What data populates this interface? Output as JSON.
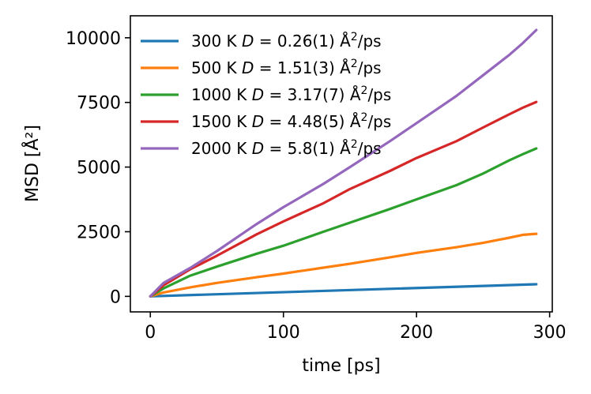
{
  "chart_data": {
    "type": "line",
    "xlabel": "time [ps]",
    "ylabel": "MSD [Å²]",
    "xlim": [
      -15,
      302
    ],
    "ylim": [
      -600,
      10850
    ],
    "xticks": [
      0,
      100,
      200,
      300
    ],
    "yticks": [
      0,
      2500,
      5000,
      7500,
      10000
    ],
    "xtick_labels": [
      "0",
      "100",
      "200",
      "300"
    ],
    "ytick_labels": [
      "0",
      "2500",
      "5000",
      "7500",
      "10000"
    ],
    "legend_position": "upper-left",
    "series": [
      {
        "name": "300 K",
        "legend": {
          "temp": "300 K",
          "sym": "D",
          "eq": "=",
          "value": "0.26(1)",
          "unit": "Å",
          "sup": "2",
          "per": "/ps"
        },
        "color": "#1f77b4",
        "x": [
          0,
          290
        ],
        "values": [
          0,
          470
        ]
      },
      {
        "name": "500 K",
        "legend": {
          "temp": "500 K",
          "sym": "D",
          "eq": "=",
          "value": "1.51(3)",
          "unit": "Å",
          "sup": "2",
          "per": "/ps"
        },
        "color": "#ff7f0e",
        "x": [
          0,
          10,
          30,
          50,
          80,
          100,
          130,
          150,
          180,
          200,
          230,
          250,
          270,
          280,
          290
        ],
        "values": [
          0,
          150,
          350,
          520,
          740,
          880,
          1110,
          1260,
          1510,
          1680,
          1900,
          2070,
          2270,
          2380,
          2420
        ]
      },
      {
        "name": "1000 K",
        "legend": {
          "temp": "1000 K",
          "sym": "D",
          "eq": "=",
          "value": "3.17(7)",
          "unit": "Å",
          "sup": "2",
          "per": "/ps"
        },
        "color": "#2ca02c",
        "x": [
          0,
          10,
          30,
          50,
          80,
          100,
          130,
          150,
          180,
          200,
          230,
          250,
          270,
          280,
          290
        ],
        "values": [
          0,
          310,
          800,
          1150,
          1650,
          1960,
          2500,
          2850,
          3380,
          3750,
          4300,
          4750,
          5270,
          5500,
          5720
        ]
      },
      {
        "name": "1500 K",
        "legend": {
          "temp": "1500 K",
          "sym": "D",
          "eq": "=",
          "value": "4.48(5)",
          "unit": "Å",
          "sup": "2",
          "per": "/ps"
        },
        "color": "#d62728",
        "x": [
          0,
          10,
          30,
          50,
          80,
          100,
          130,
          150,
          180,
          200,
          230,
          250,
          270,
          280,
          290
        ],
        "values": [
          0,
          430,
          1050,
          1570,
          2400,
          2900,
          3600,
          4150,
          4850,
          5350,
          6000,
          6530,
          7050,
          7300,
          7520
        ]
      },
      {
        "name": "2000 K",
        "legend": {
          "temp": "2000 K",
          "sym": "D",
          "eq": "=",
          "value": "5.8(1)",
          "unit": "Å",
          "sup": "2",
          "per": "/ps"
        },
        "color": "#9467bd",
        "x": [
          0,
          10,
          30,
          50,
          80,
          100,
          130,
          150,
          180,
          200,
          230,
          250,
          270,
          280,
          290
        ],
        "values": [
          0,
          520,
          1100,
          1750,
          2800,
          3450,
          4350,
          5000,
          6000,
          6700,
          7750,
          8550,
          9350,
          9800,
          10300
        ]
      }
    ]
  }
}
